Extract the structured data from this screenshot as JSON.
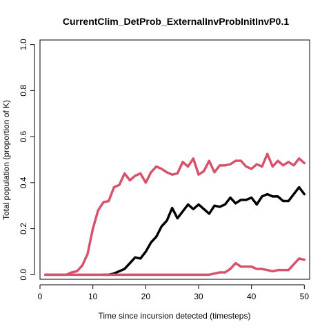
{
  "chart_data": {
    "type": "line",
    "title": "CurrentClim_DetProb_ExternalInvProbInitInvP0.1",
    "xlabel": "Time since incursion detected (timesteps)",
    "ylabel": "Total population (proportion of K)",
    "xlim": [
      0,
      51
    ],
    "ylim": [
      -0.02,
      1.02
    ],
    "xticks": [
      0,
      10,
      20,
      30,
      40,
      50
    ],
    "yticks": [
      0.0,
      0.2,
      0.4,
      0.6,
      0.8,
      1.0
    ],
    "ytick_labels": [
      "0.0",
      "0.2",
      "0.4",
      "0.6",
      "0.8",
      "1.0"
    ],
    "grid": false,
    "x": [
      1,
      2,
      3,
      4,
      5,
      6,
      7,
      8,
      9,
      10,
      11,
      12,
      13,
      14,
      15,
      16,
      17,
      18,
      19,
      20,
      21,
      22,
      23,
      24,
      25,
      26,
      27,
      28,
      29,
      30,
      31,
      32,
      33,
      34,
      35,
      36,
      37,
      38,
      39,
      40,
      41,
      42,
      43,
      44,
      45,
      46,
      47,
      48,
      49,
      50
    ],
    "series": [
      {
        "color": "#d6536b",
        "values": [
          0,
          0,
          0,
          0,
          0,
          0.01,
          0.015,
          0.04,
          0.09,
          0.2,
          0.28,
          0.315,
          0.32,
          0.38,
          0.39,
          0.44,
          0.41,
          0.43,
          0.44,
          0.4,
          0.445,
          0.47,
          0.46,
          0.445,
          0.435,
          0.44,
          0.49,
          0.47,
          0.505,
          0.435,
          0.45,
          0.495,
          0.445,
          0.475,
          0.475,
          0.48,
          0.495,
          0.495,
          0.47,
          0.46,
          0.48,
          0.47,
          0.525,
          0.47,
          0.495,
          0.475,
          0.49,
          0.475,
          0.505,
          0.485
        ]
      },
      {
        "color": "#000000",
        "values": [
          null,
          null,
          null,
          null,
          null,
          null,
          null,
          null,
          null,
          null,
          null,
          0,
          0,
          0.005,
          0.015,
          0.025,
          0.05,
          0.075,
          0.07,
          0.1,
          0.14,
          0.165,
          0.21,
          0.235,
          0.29,
          0.245,
          0.275,
          0.305,
          0.285,
          0.305,
          0.285,
          0.265,
          0.3,
          0.295,
          0.305,
          0.335,
          0.31,
          0.325,
          0.325,
          0.335,
          0.305,
          0.34,
          0.35,
          0.34,
          0.34,
          0.32,
          0.32,
          0.35,
          0.38,
          0.35
        ]
      },
      {
        "color": "#d6536b",
        "values": [
          0,
          0,
          0,
          0,
          0,
          0,
          0,
          0,
          0,
          0,
          0,
          0,
          0,
          0,
          0,
          0,
          0,
          0,
          0,
          0,
          0,
          0,
          0,
          0,
          0,
          0,
          0,
          0,
          0,
          0,
          0,
          0,
          0.005,
          0.01,
          0.01,
          0.025,
          0.05,
          0.035,
          0.035,
          0.035,
          0.025,
          0.025,
          0.02,
          0.015,
          0.02,
          0.02,
          0.02,
          0.045,
          0.07,
          0.065
        ]
      }
    ]
  }
}
